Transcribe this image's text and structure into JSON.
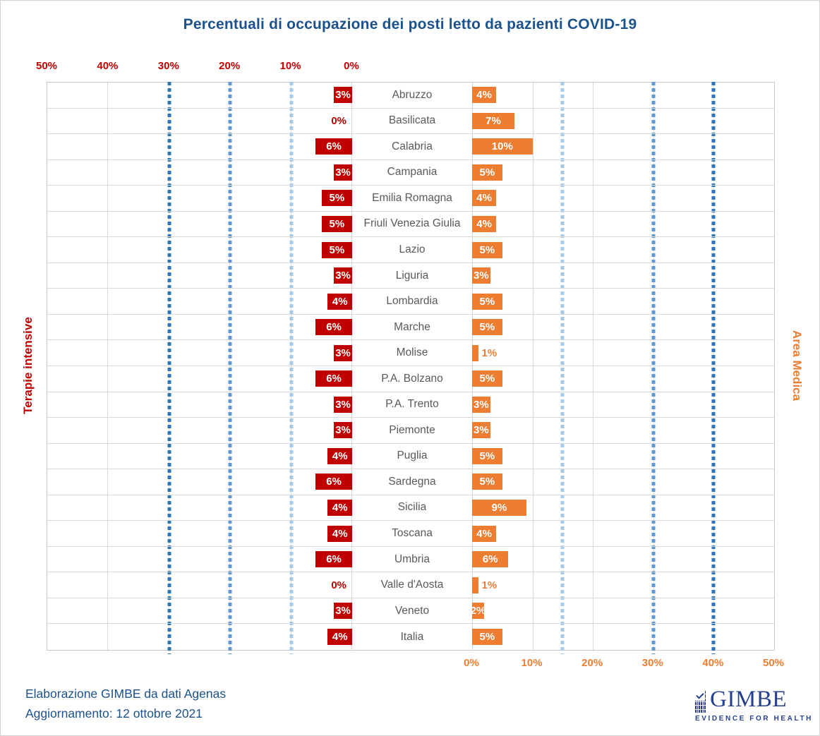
{
  "title": "Percentuali di occupazione dei posti letto da pazienti COVID-19",
  "colors": {
    "terapie_intensive": "#C00000",
    "area_medica": "#ED7D31",
    "title_blue": "#1B528C",
    "logo_navy": "#27408E",
    "gridline_gray": "#D9D9D9",
    "threshold_light": "#A6C9E8",
    "threshold_medium": "#5B9BD5",
    "threshold_dark": "#2E75B6"
  },
  "chart_data": {
    "type": "bar",
    "subtype": "tornado-diverging",
    "title": "Percentuali di occupazione dei posti letto da pazienti COVID-19",
    "categories": [
      "Abruzzo",
      "Basilicata",
      "Calabria",
      "Campania",
      "Emilia Romagna",
      "Friuli Venezia Giulia",
      "Lazio",
      "Liguria",
      "Lombardia",
      "Marche",
      "Molise",
      "P.A. Bolzano",
      "P.A. Trento",
      "Piemonte",
      "Puglia",
      "Sardegna",
      "Sicilia",
      "Toscana",
      "Umbria",
      "Valle d'Aosta",
      "Veneto",
      "Italia"
    ],
    "series": [
      {
        "name": "Terapie intensive",
        "side": "left",
        "color": "#C00000",
        "values": [
          3,
          0,
          6,
          3,
          5,
          5,
          5,
          3,
          4,
          6,
          3,
          6,
          3,
          3,
          4,
          6,
          4,
          4,
          6,
          0,
          3,
          4
        ]
      },
      {
        "name": "Area Medica",
        "side": "right",
        "color": "#ED7D31",
        "values": [
          4,
          7,
          10,
          5,
          4,
          4,
          5,
          3,
          5,
          5,
          1,
          5,
          3,
          3,
          5,
          5,
          9,
          4,
          6,
          1,
          2,
          5
        ]
      }
    ],
    "value_suffix": "%",
    "left_axis": {
      "title": "Terapie intensive",
      "range": [
        0,
        50
      ],
      "reversed": true,
      "tick_labels": [
        "50%",
        "40%",
        "30%",
        "20%",
        "10%",
        "0%"
      ]
    },
    "right_axis": {
      "title": "Area Medica",
      "range": [
        0,
        50
      ],
      "reversed": false,
      "tick_labels": [
        "0%",
        "10%",
        "20%",
        "30%",
        "40%",
        "50%"
      ]
    },
    "thresholds": {
      "left": [
        {
          "value": 10,
          "color": "#A6C9E8"
        },
        {
          "value": 20,
          "color": "#5B9BD5"
        },
        {
          "value": 30,
          "color": "#2E75B6"
        }
      ],
      "right": [
        {
          "value": 15,
          "color": "#A6C9E8"
        },
        {
          "value": 30,
          "color": "#5B9BD5"
        },
        {
          "value": 40,
          "color": "#2E75B6"
        }
      ]
    },
    "grid": true,
    "legend_position": "none"
  },
  "footer": {
    "line1": "Elaborazione GIMBE da dati Agenas",
    "line2": "Aggiornamento: 12 ottobre 2021"
  },
  "logo": {
    "wordmark": "GIMBE",
    "tagline": "EVIDENCE FOR HEALTH"
  }
}
